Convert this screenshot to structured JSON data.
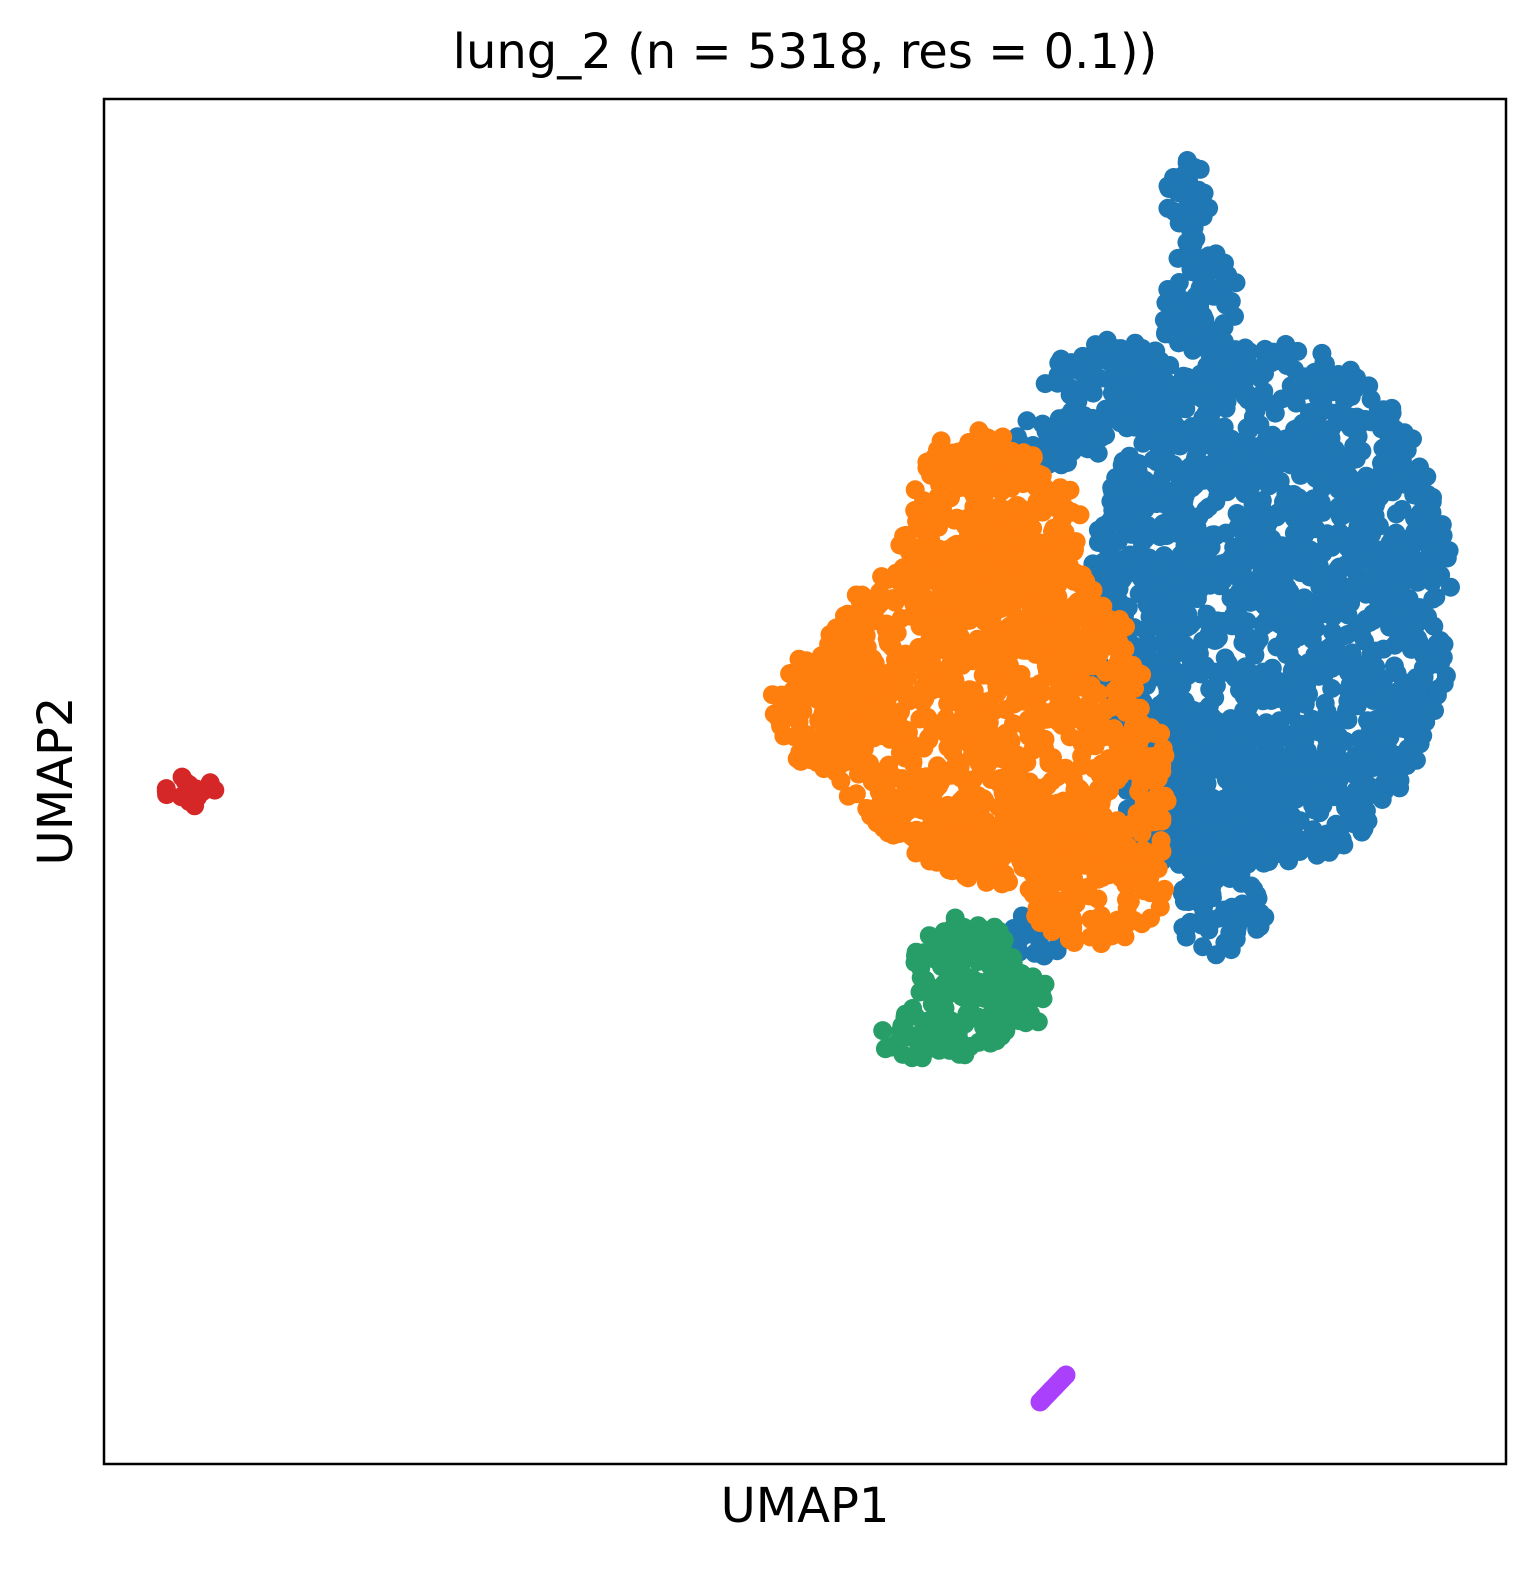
{
  "chart_data": {
    "type": "scatter",
    "title": "lung_2 (n = 5318, res = 0.1))",
    "xlabel": "UMAP1",
    "ylabel": "UMAP2",
    "xticks": [],
    "yticks": [],
    "grid": false,
    "legend": "none",
    "n_points": 5318,
    "series": [
      {
        "cluster": "0",
        "color": "#1f77b4",
        "regions": [
          {
            "shape": "blob",
            "center": [
              1272,
              605
            ],
            "radius": [
              182,
              262
            ]
          },
          {
            "shape": "blob",
            "center": [
              1215,
              800
            ],
            "radius": [
              90,
              80
            ]
          },
          {
            "shape": "blob",
            "center": [
              1220,
              915
            ],
            "radius": [
              48,
              40
            ]
          },
          {
            "shape": "blob",
            "center": [
              1115,
              385
            ],
            "radius": [
              70,
              45
            ]
          },
          {
            "shape": "blob",
            "center": [
              1198,
              300
            ],
            "radius": [
              40,
              60
            ]
          },
          {
            "shape": "blob",
            "center": [
              1188,
              200
            ],
            "radius": [
              22,
              45
            ]
          },
          {
            "shape": "blob",
            "center": [
              1060,
              440
            ],
            "radius": [
              55,
              25
            ]
          },
          {
            "shape": "blob",
            "center": [
              1135,
              850
            ],
            "radius": [
              20,
              30
            ]
          },
          {
            "shape": "blob",
            "center": [
              1040,
              935
            ],
            "radius": [
              30,
              25
            ]
          }
        ]
      },
      {
        "cluster": "1",
        "color": "#ff7f0e",
        "regions": [
          {
            "shape": "blob",
            "center": [
              980,
              700
            ],
            "radius": [
              165,
              160
            ]
          },
          {
            "shape": "blob",
            "center": [
              990,
              540
            ],
            "radius": [
              95,
              95
            ]
          },
          {
            "shape": "blob",
            "center": [
              975,
              460
            ],
            "radius": [
              55,
              30
            ]
          },
          {
            "shape": "blob",
            "center": [
              1095,
              890
            ],
            "radius": [
              70,
              55
            ]
          },
          {
            "shape": "blob",
            "center": [
              830,
              710
            ],
            "radius": [
              60,
              60
            ]
          },
          {
            "shape": "blob",
            "center": [
              1020,
              840
            ],
            "radius": [
              110,
              45
            ]
          },
          {
            "shape": "blob",
            "center": [
              1150,
              800
            ],
            "radius": [
              20,
              80
            ]
          }
        ]
      },
      {
        "cluster": "2",
        "color": "#279e68",
        "regions": [
          {
            "shape": "blob",
            "center": [
              965,
              985
            ],
            "radius": [
              58,
              70
            ]
          },
          {
            "shape": "blob",
            "center": [
              920,
              1035
            ],
            "radius": [
              45,
              25
            ]
          },
          {
            "shape": "blob",
            "center": [
              1020,
              1000
            ],
            "radius": [
              30,
              30
            ]
          }
        ]
      },
      {
        "cluster": "3",
        "color": "#d62728",
        "regions": [
          {
            "shape": "blob",
            "center": [
              190,
              792
            ],
            "radius": [
              28,
              16
            ]
          }
        ]
      },
      {
        "cluster": "4",
        "color": "#aa40fc",
        "regions": [
          {
            "shape": "line",
            "from": [
              1040,
              1402
            ],
            "to": [
              1066,
              1375
            ]
          }
        ]
      }
    ]
  }
}
